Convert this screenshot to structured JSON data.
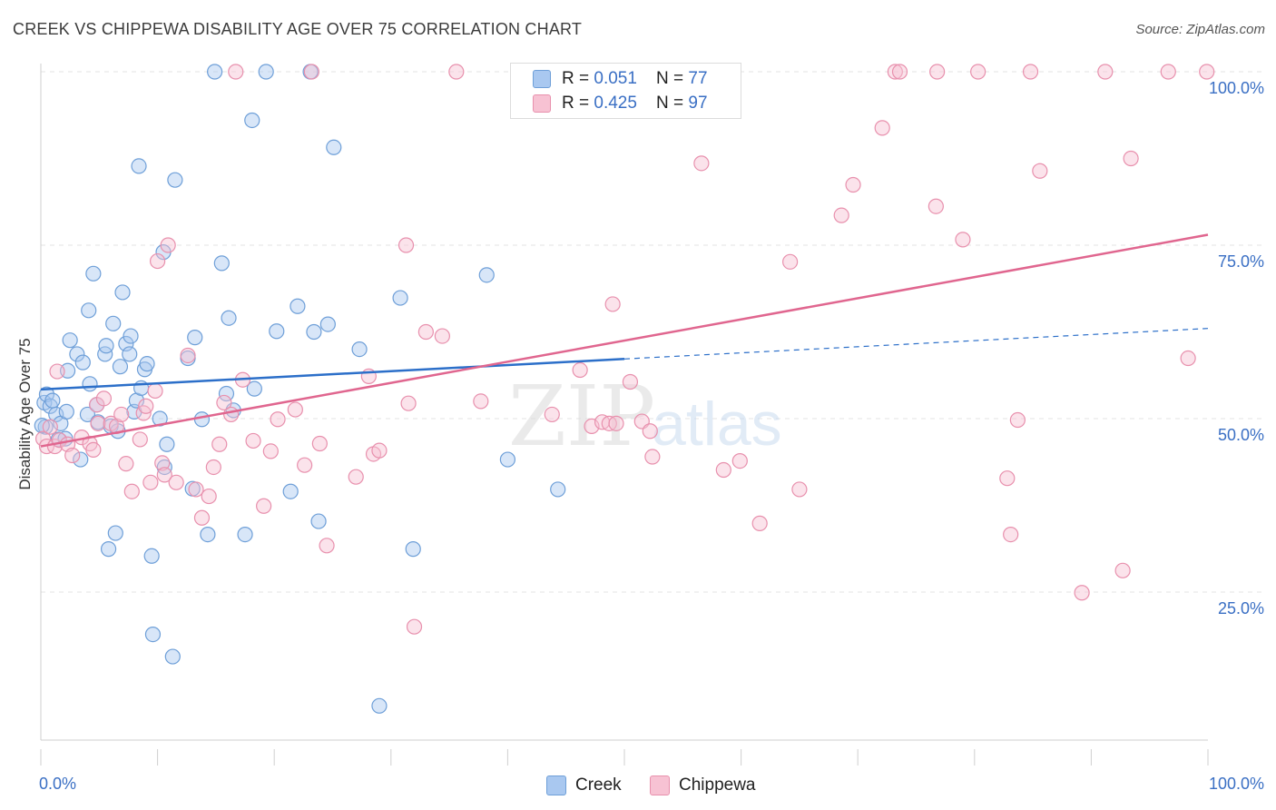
{
  "header": {
    "title": "CREEK VS CHIPPEWA DISABILITY AGE OVER 75 CORRELATION CHART",
    "source": "Source: ZipAtlas.com"
  },
  "watermark": {
    "zip": "ZIP",
    "atlas": "atlas"
  },
  "stats": [
    {
      "r_label": "R = ",
      "r_value": "0.051",
      "n_label": "N = ",
      "n_value": "77",
      "color": "#a9c8f0"
    },
    {
      "r_label": "R = ",
      "r_value": "0.425",
      "n_label": "N = ",
      "n_value": "97",
      "color": "#f5b8cb"
    }
  ],
  "legend": [
    {
      "label": "Creek",
      "color": "#a9c8f0"
    },
    {
      "label": "Chippewa",
      "color": "#f5b8cb"
    }
  ],
  "colors": {
    "creek_fill": "#a9c8f0",
    "creek_stroke": "#6e9fd8",
    "creek_line": "#2c6fc9",
    "chippewa_fill": "#f7c2d3",
    "chippewa_stroke": "#e890ad",
    "chippewa_line": "#e0668f",
    "tick_label": "#3a6fc4",
    "grid": "#e3e3e3"
  },
  "chart_data": {
    "type": "scatter",
    "title": "CREEK VS CHIPPEWA DISABILITY AGE OVER 75 CORRELATION CHART",
    "xlabel": "",
    "ylabel": "Disability Age Over 75",
    "xlim": [
      0,
      100
    ],
    "ylim": [
      0,
      102
    ],
    "x_tick_labels": [
      "0.0%",
      "100.0%"
    ],
    "y_ticks": [
      25,
      50,
      75,
      100
    ],
    "y_tick_labels": [
      "25.0%",
      "50.0%",
      "75.0%",
      "100.0%"
    ],
    "grid": true,
    "series": [
      {
        "name": "Creek",
        "trend": {
          "solid_x": [
            0,
            50
          ],
          "dashed_x": [
            50,
            100
          ],
          "y_at_0": 54.2,
          "y_at_100": 63.0
        },
        "points": [
          [
            0.3,
            52.3
          ],
          [
            0.4,
            48.8
          ],
          [
            0.5,
            53.5
          ],
          [
            0.8,
            51.8
          ],
          [
            1.0,
            52.6
          ],
          [
            1.3,
            50.6
          ],
          [
            1.5,
            47.0
          ],
          [
            1.7,
            49.3
          ],
          [
            2.1,
            47.1
          ],
          [
            2.2,
            51.0
          ],
          [
            2.3,
            56.9
          ],
          [
            2.5,
            61.3
          ],
          [
            3.1,
            59.3
          ],
          [
            3.4,
            44.1
          ],
          [
            3.6,
            58.1
          ],
          [
            4.0,
            50.6
          ],
          [
            4.1,
            65.6
          ],
          [
            4.2,
            55.0
          ],
          [
            4.5,
            70.9
          ],
          [
            4.8,
            52.0
          ],
          [
            4.9,
            49.5
          ],
          [
            5.5,
            59.3
          ],
          [
            5.6,
            60.5
          ],
          [
            5.8,
            31.2
          ],
          [
            6.0,
            48.9
          ],
          [
            6.2,
            63.7
          ],
          [
            6.4,
            33.5
          ],
          [
            6.6,
            48.2
          ],
          [
            6.8,
            57.5
          ],
          [
            7.0,
            68.2
          ],
          [
            7.3,
            60.8
          ],
          [
            7.6,
            59.3
          ],
          [
            7.7,
            61.9
          ],
          [
            8.0,
            51.0
          ],
          [
            8.2,
            52.6
          ],
          [
            8.4,
            86.4
          ],
          [
            8.6,
            54.4
          ],
          [
            8.9,
            57.1
          ],
          [
            9.1,
            57.9
          ],
          [
            9.5,
            30.2
          ],
          [
            9.6,
            18.9
          ],
          [
            10.2,
            50.0
          ],
          [
            10.5,
            74.0
          ],
          [
            10.6,
            43.0
          ],
          [
            10.8,
            46.3
          ],
          [
            11.3,
            15.7
          ],
          [
            11.5,
            84.4
          ],
          [
            12.6,
            58.7
          ],
          [
            13.0,
            39.9
          ],
          [
            13.2,
            61.7
          ],
          [
            13.8,
            49.9
          ],
          [
            14.3,
            33.3
          ],
          [
            14.9,
            100.0
          ],
          [
            15.5,
            72.4
          ],
          [
            15.9,
            53.6
          ],
          [
            16.1,
            64.5
          ],
          [
            16.5,
            51.2
          ],
          [
            17.5,
            33.3
          ],
          [
            18.1,
            93.0
          ],
          [
            18.3,
            54.3
          ],
          [
            19.3,
            100.0
          ],
          [
            20.2,
            62.6
          ],
          [
            21.4,
            39.5
          ],
          [
            22.0,
            66.2
          ],
          [
            23.1,
            100.0
          ],
          [
            23.4,
            62.5
          ],
          [
            23.8,
            35.2
          ],
          [
            24.6,
            63.6
          ],
          [
            25.1,
            89.1
          ],
          [
            27.3,
            60.0
          ],
          [
            29.0,
            8.6
          ],
          [
            30.8,
            67.4
          ],
          [
            31.9,
            31.2
          ],
          [
            38.2,
            70.7
          ],
          [
            40.0,
            44.1
          ],
          [
            44.3,
            39.8
          ],
          [
            0.1,
            49.0
          ]
        ]
      },
      {
        "name": "Chippewa",
        "trend": {
          "solid_x": [
            0,
            100
          ],
          "y_at_0": 46.0,
          "y_at_100": 76.5
        },
        "points": [
          [
            0.2,
            47.1
          ],
          [
            0.5,
            46.0
          ],
          [
            0.8,
            48.8
          ],
          [
            1.2,
            46.0
          ],
          [
            1.4,
            56.8
          ],
          [
            1.6,
            46.9
          ],
          [
            2.3,
            46.3
          ],
          [
            2.7,
            44.7
          ],
          [
            3.5,
            47.3
          ],
          [
            4.2,
            46.4
          ],
          [
            4.5,
            45.5
          ],
          [
            4.8,
            52.0
          ],
          [
            4.9,
            49.3
          ],
          [
            5.4,
            52.9
          ],
          [
            6.0,
            49.3
          ],
          [
            6.5,
            48.9
          ],
          [
            6.9,
            50.6
          ],
          [
            7.3,
            43.5
          ],
          [
            7.8,
            39.5
          ],
          [
            8.5,
            47.0
          ],
          [
            8.8,
            50.8
          ],
          [
            9.0,
            51.8
          ],
          [
            9.4,
            40.8
          ],
          [
            9.8,
            54.0
          ],
          [
            10.0,
            72.7
          ],
          [
            10.4,
            43.6
          ],
          [
            10.6,
            41.9
          ],
          [
            10.9,
            75.0
          ],
          [
            11.6,
            40.8
          ],
          [
            12.6,
            59.1
          ],
          [
            13.3,
            39.8
          ],
          [
            13.8,
            35.7
          ],
          [
            14.4,
            38.8
          ],
          [
            14.8,
            43.0
          ],
          [
            15.3,
            46.3
          ],
          [
            15.7,
            52.3
          ],
          [
            16.3,
            50.6
          ],
          [
            16.7,
            100.0
          ],
          [
            17.3,
            55.6
          ],
          [
            18.2,
            46.8
          ],
          [
            19.1,
            37.4
          ],
          [
            19.7,
            45.3
          ],
          [
            20.3,
            49.9
          ],
          [
            21.8,
            51.3
          ],
          [
            22.6,
            43.3
          ],
          [
            23.2,
            100.0
          ],
          [
            23.9,
            46.4
          ],
          [
            24.5,
            31.7
          ],
          [
            27.0,
            41.6
          ],
          [
            28.1,
            56.1
          ],
          [
            28.5,
            44.9
          ],
          [
            29.0,
            45.4
          ],
          [
            31.3,
            75.0
          ],
          [
            31.5,
            52.2
          ],
          [
            32.0,
            20.0
          ],
          [
            33.0,
            62.5
          ],
          [
            34.4,
            61.9
          ],
          [
            35.6,
            100.0
          ],
          [
            37.7,
            52.5
          ],
          [
            43.8,
            50.6
          ],
          [
            46.2,
            57.0
          ],
          [
            47.2,
            48.9
          ],
          [
            48.1,
            49.5
          ],
          [
            48.7,
            49.3
          ],
          [
            49.0,
            66.5
          ],
          [
            49.3,
            49.3
          ],
          [
            50.5,
            55.3
          ],
          [
            51.5,
            49.6
          ],
          [
            52.2,
            48.2
          ],
          [
            52.4,
            44.5
          ],
          [
            56.6,
            86.8
          ],
          [
            58.5,
            42.6
          ],
          [
            59.9,
            43.9
          ],
          [
            61.6,
            34.9
          ],
          [
            64.2,
            72.6
          ],
          [
            65.0,
            39.8
          ],
          [
            68.6,
            79.3
          ],
          [
            69.6,
            83.7
          ],
          [
            72.1,
            91.9
          ],
          [
            73.2,
            100.0
          ],
          [
            73.6,
            100.0
          ],
          [
            76.7,
            80.6
          ],
          [
            76.8,
            100.0
          ],
          [
            79.0,
            75.8
          ],
          [
            80.3,
            100.0
          ],
          [
            82.8,
            41.4
          ],
          [
            83.1,
            33.3
          ],
          [
            83.7,
            49.8
          ],
          [
            84.8,
            100.0
          ],
          [
            85.6,
            85.7
          ],
          [
            89.2,
            24.9
          ],
          [
            91.2,
            100.0
          ],
          [
            92.7,
            28.1
          ],
          [
            93.4,
            87.5
          ],
          [
            96.6,
            100.0
          ],
          [
            98.3,
            58.7
          ],
          [
            99.9,
            100.0
          ]
        ]
      }
    ]
  }
}
